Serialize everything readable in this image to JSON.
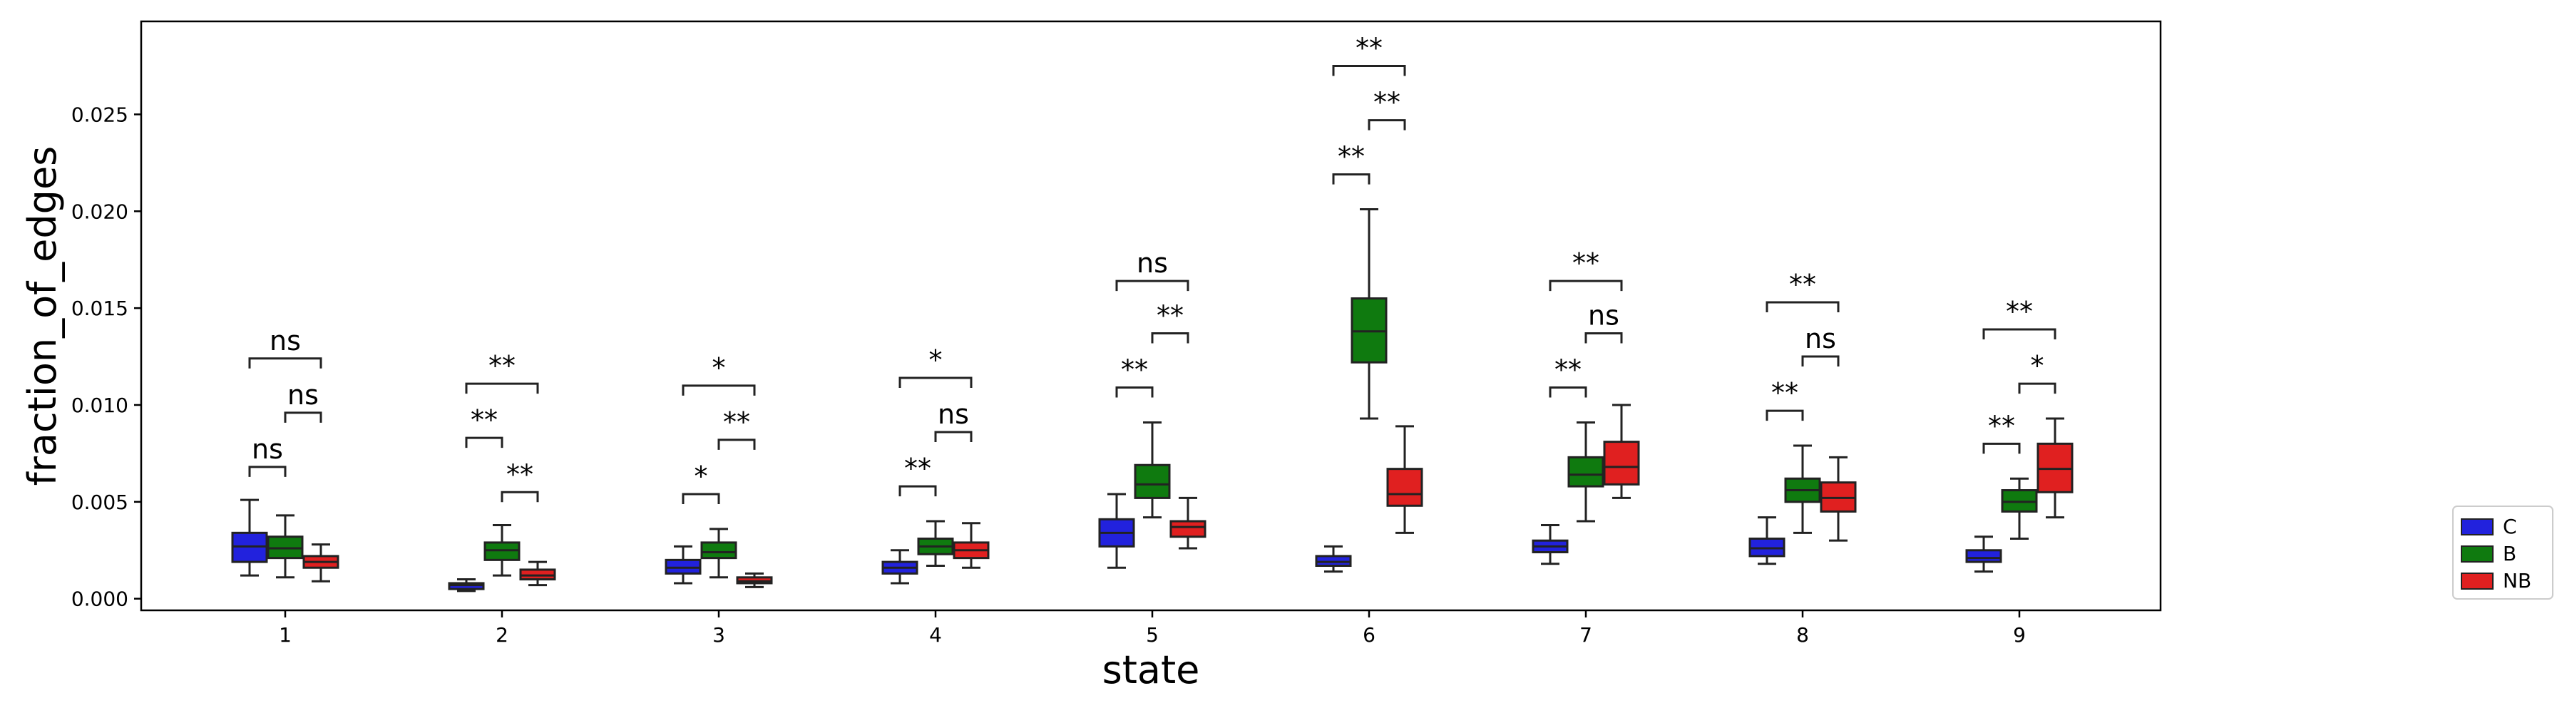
{
  "chart_data": {
    "type": "box",
    "xlabel": "state",
    "ylabel": "fraction_of_edges",
    "categories": [
      "1",
      "2",
      "3",
      "4",
      "5",
      "6",
      "7",
      "8",
      "9"
    ],
    "ylim": [
      -0.0006,
      0.0298
    ],
    "yticks": [
      "0.000",
      "0.005",
      "0.010",
      "0.015",
      "0.020",
      "0.025"
    ],
    "ytick_values": [
      0,
      0.005,
      0.01,
      0.015,
      0.02,
      0.025
    ],
    "grid": false,
    "legend_position": "lower-right outside",
    "series": [
      {
        "name": "C",
        "color": "#2222dd",
        "boxes": [
          {
            "whislo": 0.0012,
            "q1": 0.0019,
            "med": 0.0027,
            "q3": 0.0034,
            "whishi": 0.0051
          },
          {
            "whislo": 0.0004,
            "q1": 0.0005,
            "med": 0.0007,
            "q3": 0.0008,
            "whishi": 0.001
          },
          {
            "whislo": 0.0008,
            "q1": 0.0013,
            "med": 0.0016,
            "q3": 0.002,
            "whishi": 0.0027
          },
          {
            "whislo": 0.0008,
            "q1": 0.0013,
            "med": 0.0016,
            "q3": 0.0019,
            "whishi": 0.0025
          },
          {
            "whislo": 0.0016,
            "q1": 0.0027,
            "med": 0.0034,
            "q3": 0.0041,
            "whishi": 0.0054
          },
          {
            "whislo": 0.0014,
            "q1": 0.0017,
            "med": 0.0019,
            "q3": 0.0022,
            "whishi": 0.0027
          },
          {
            "whislo": 0.0018,
            "q1": 0.0024,
            "med": 0.0027,
            "q3": 0.003,
            "whishi": 0.0038
          },
          {
            "whislo": 0.0018,
            "q1": 0.0022,
            "med": 0.0026,
            "q3": 0.0031,
            "whishi": 0.0042
          },
          {
            "whislo": 0.0014,
            "q1": 0.0019,
            "med": 0.0021,
            "q3": 0.0025,
            "whishi": 0.0032
          }
        ]
      },
      {
        "name": "B",
        "color": "#0f7a0f",
        "boxes": [
          {
            "whislo": 0.0011,
            "q1": 0.0021,
            "med": 0.0026,
            "q3": 0.0032,
            "whishi": 0.0043
          },
          {
            "whislo": 0.0012,
            "q1": 0.002,
            "med": 0.0025,
            "q3": 0.0029,
            "whishi": 0.0038
          },
          {
            "whislo": 0.0011,
            "q1": 0.0021,
            "med": 0.0024,
            "q3": 0.0029,
            "whishi": 0.0036
          },
          {
            "whislo": 0.0017,
            "q1": 0.0023,
            "med": 0.0027,
            "q3": 0.0031,
            "whishi": 0.004
          },
          {
            "whislo": 0.0042,
            "q1": 0.0052,
            "med": 0.0059,
            "q3": 0.0069,
            "whishi": 0.0091
          },
          {
            "whislo": 0.0093,
            "q1": 0.0122,
            "med": 0.0138,
            "q3": 0.0155,
            "whishi": 0.0201
          },
          {
            "whislo": 0.004,
            "q1": 0.0058,
            "med": 0.0064,
            "q3": 0.0073,
            "whishi": 0.0091
          },
          {
            "whislo": 0.0034,
            "q1": 0.005,
            "med": 0.0056,
            "q3": 0.0062,
            "whishi": 0.0079
          },
          {
            "whislo": 0.0031,
            "q1": 0.0045,
            "med": 0.005,
            "q3": 0.0056,
            "whishi": 0.0062
          }
        ]
      },
      {
        "name": "NB",
        "color": "#e02020",
        "boxes": [
          {
            "whislo": 0.0009,
            "q1": 0.0016,
            "med": 0.0019,
            "q3": 0.0022,
            "whishi": 0.0028
          },
          {
            "whislo": 0.0007,
            "q1": 0.001,
            "med": 0.0012,
            "q3": 0.0015,
            "whishi": 0.0019
          },
          {
            "whislo": 0.0006,
            "q1": 0.0008,
            "med": 0.0009,
            "q3": 0.0011,
            "whishi": 0.0013
          },
          {
            "whislo": 0.0016,
            "q1": 0.0021,
            "med": 0.0025,
            "q3": 0.0029,
            "whishi": 0.0039
          },
          {
            "whislo": 0.0026,
            "q1": 0.0032,
            "med": 0.0037,
            "q3": 0.004,
            "whishi": 0.0052
          },
          {
            "whislo": 0.0034,
            "q1": 0.0048,
            "med": 0.0054,
            "q3": 0.0067,
            "whishi": 0.0089
          },
          {
            "whislo": 0.0052,
            "q1": 0.0059,
            "med": 0.0068,
            "q3": 0.0081,
            "whishi": 0.01
          },
          {
            "whislo": 0.003,
            "q1": 0.0045,
            "med": 0.0052,
            "q3": 0.006,
            "whishi": 0.0073
          },
          {
            "whislo": 0.0042,
            "q1": 0.0055,
            "med": 0.0067,
            "q3": 0.008,
            "whishi": 0.0093
          }
        ]
      }
    ],
    "annotations": [
      {
        "category": "1",
        "from": "C",
        "to": "B",
        "y": 0.0068,
        "label": "ns"
      },
      {
        "category": "1",
        "from": "B",
        "to": "NB",
        "y": 0.0096,
        "label": "ns"
      },
      {
        "category": "1",
        "from": "C",
        "to": "NB",
        "y": 0.0124,
        "label": "ns"
      },
      {
        "category": "2",
        "from": "C",
        "to": "B",
        "y": 0.0083,
        "label": "**"
      },
      {
        "category": "2",
        "from": "B",
        "to": "NB",
        "y": 0.0055,
        "label": "**"
      },
      {
        "category": "2",
        "from": "C",
        "to": "NB",
        "y": 0.0111,
        "label": "**"
      },
      {
        "category": "3",
        "from": "C",
        "to": "B",
        "y": 0.0054,
        "label": "*"
      },
      {
        "category": "3",
        "from": "B",
        "to": "NB",
        "y": 0.0082,
        "label": "**"
      },
      {
        "category": "3",
        "from": "C",
        "to": "NB",
        "y": 0.011,
        "label": "*"
      },
      {
        "category": "4",
        "from": "C",
        "to": "B",
        "y": 0.0058,
        "label": "**"
      },
      {
        "category": "4",
        "from": "B",
        "to": "NB",
        "y": 0.0086,
        "label": "ns"
      },
      {
        "category": "4",
        "from": "C",
        "to": "NB",
        "y": 0.0114,
        "label": "*"
      },
      {
        "category": "5",
        "from": "C",
        "to": "B",
        "y": 0.0109,
        "label": "**"
      },
      {
        "category": "5",
        "from": "B",
        "to": "NB",
        "y": 0.0137,
        "label": "**"
      },
      {
        "category": "5",
        "from": "C",
        "to": "NB",
        "y": 0.0164,
        "label": "ns"
      },
      {
        "category": "6",
        "from": "C",
        "to": "B",
        "y": 0.0219,
        "label": "**"
      },
      {
        "category": "6",
        "from": "B",
        "to": "NB",
        "y": 0.0247,
        "label": "**"
      },
      {
        "category": "6",
        "from": "C",
        "to": "NB",
        "y": 0.0275,
        "label": "**"
      },
      {
        "category": "7",
        "from": "C",
        "to": "B",
        "y": 0.0109,
        "label": "**"
      },
      {
        "category": "7",
        "from": "B",
        "to": "NB",
        "y": 0.0137,
        "label": "ns"
      },
      {
        "category": "7",
        "from": "C",
        "to": "NB",
        "y": 0.0164,
        "label": "**"
      },
      {
        "category": "8",
        "from": "C",
        "to": "B",
        "y": 0.0097,
        "label": "**"
      },
      {
        "category": "8",
        "from": "B",
        "to": "NB",
        "y": 0.0125,
        "label": "ns"
      },
      {
        "category": "8",
        "from": "C",
        "to": "NB",
        "y": 0.0153,
        "label": "**"
      },
      {
        "category": "9",
        "from": "C",
        "to": "B",
        "y": 0.008,
        "label": "**"
      },
      {
        "category": "9",
        "from": "B",
        "to": "NB",
        "y": 0.0111,
        "label": "*"
      },
      {
        "category": "9",
        "from": "C",
        "to": "NB",
        "y": 0.0139,
        "label": "**"
      }
    ]
  }
}
